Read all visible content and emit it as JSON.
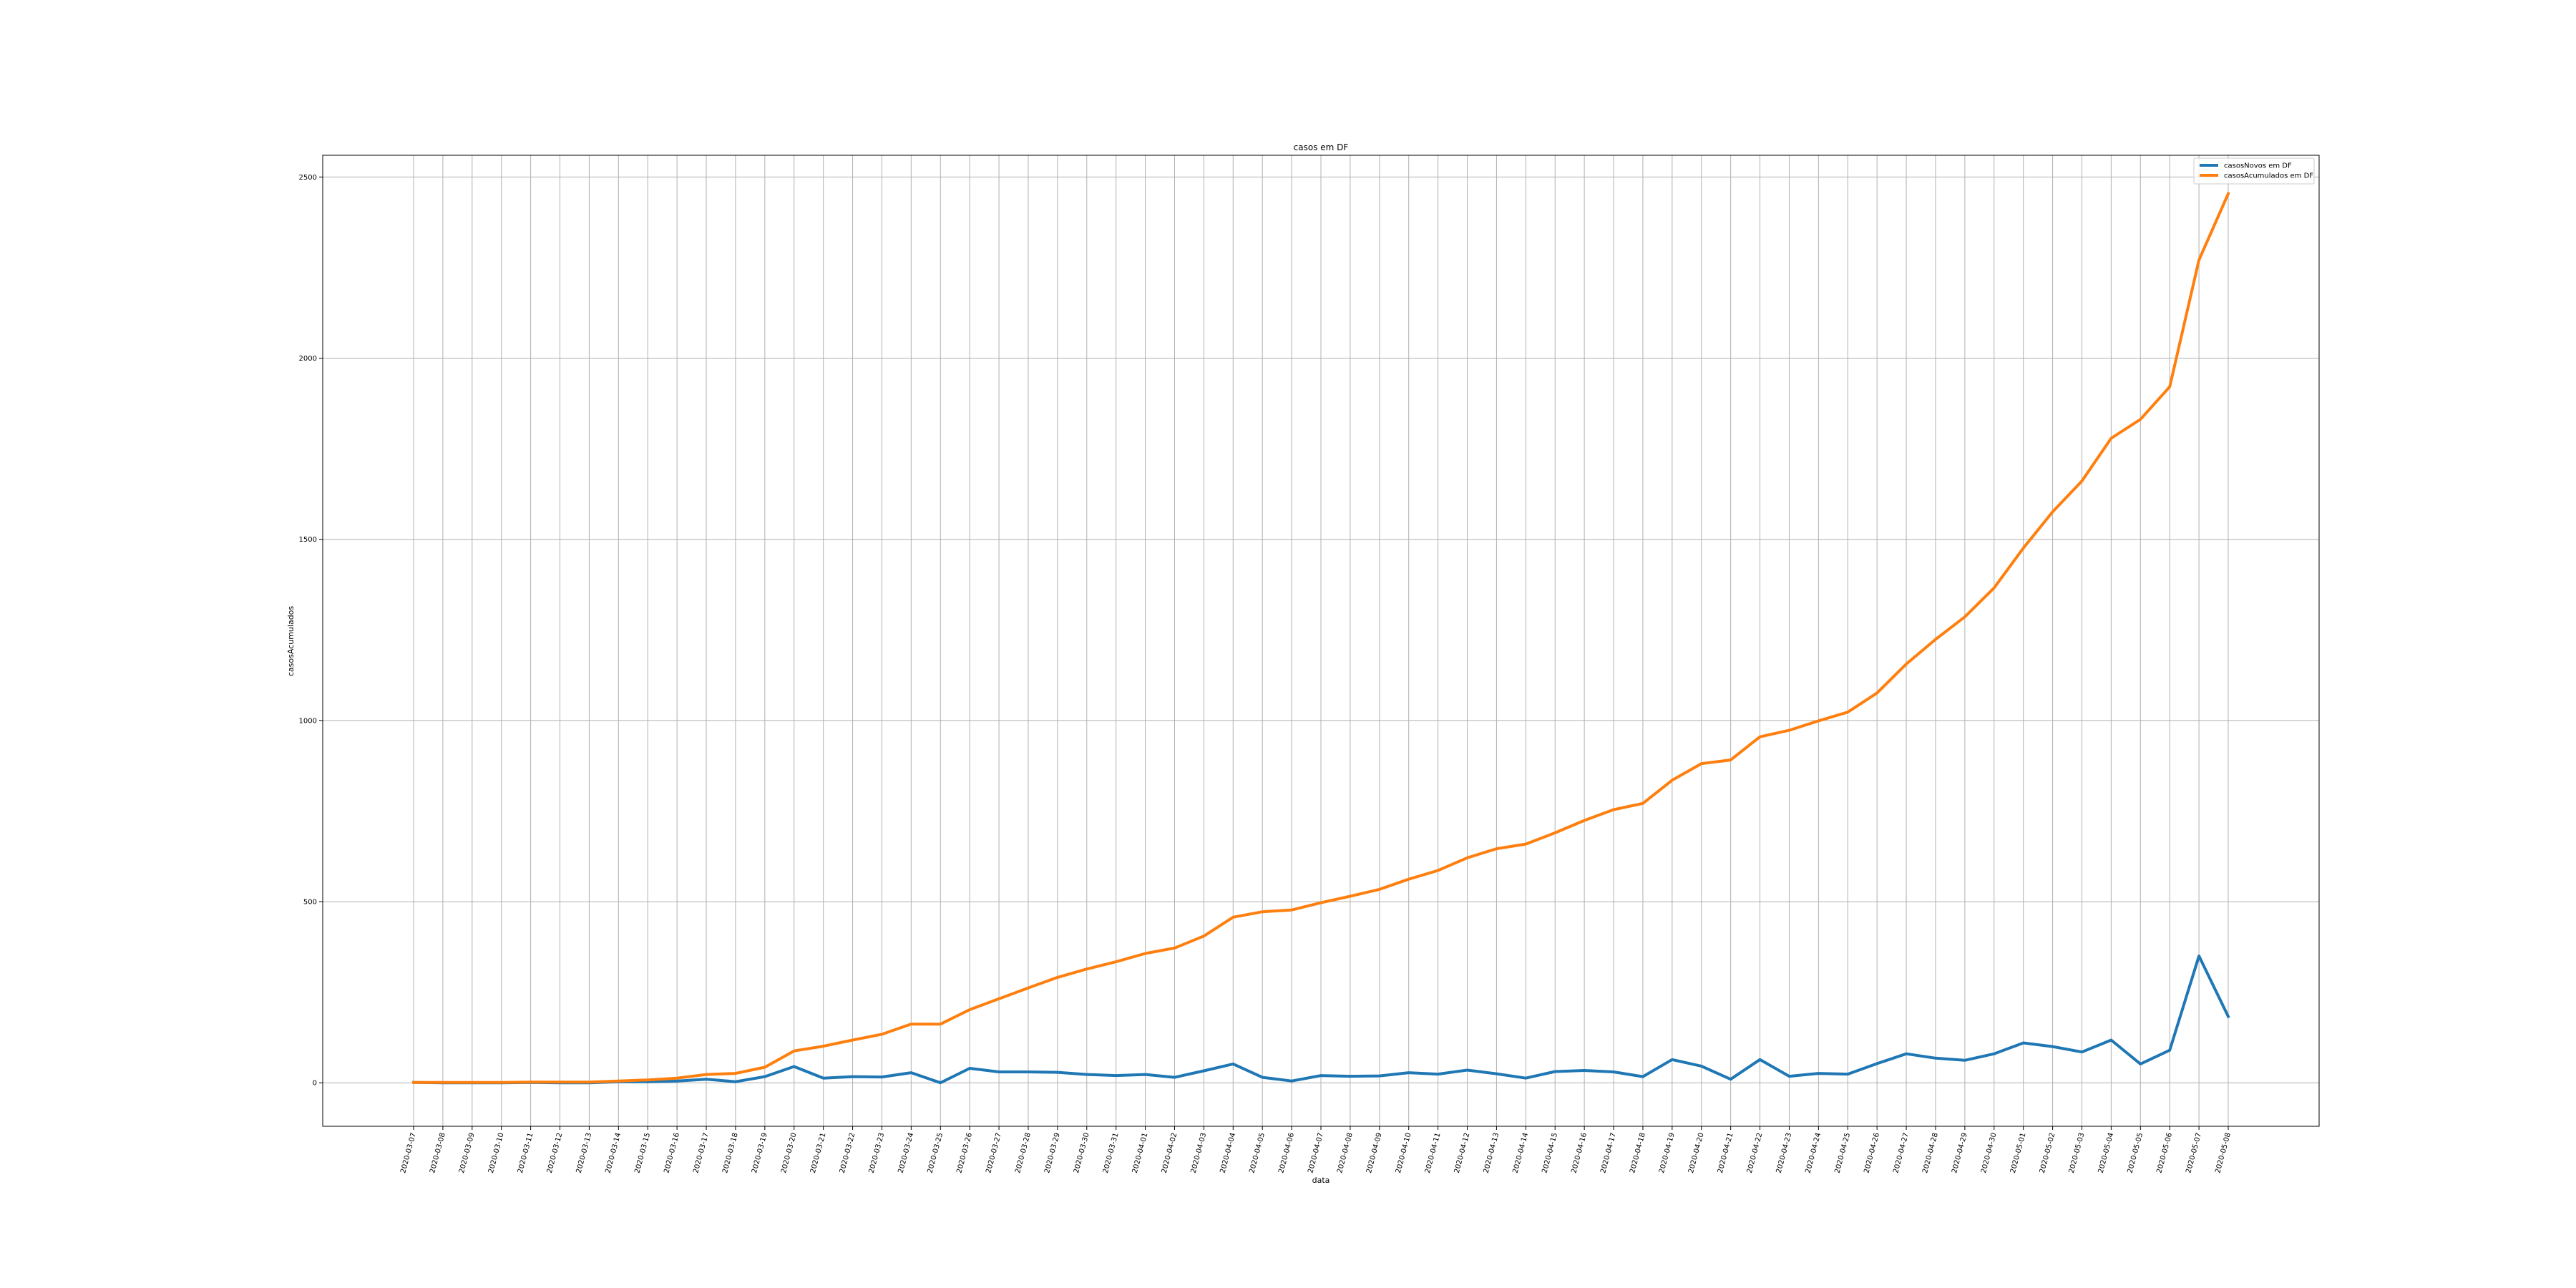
{
  "chart_data": {
    "type": "line",
    "title": "casos em DF",
    "xlabel": "data",
    "ylabel": "casosAcumulados",
    "ylim": [
      -120,
      2560
    ],
    "yticks": [
      0,
      500,
      1000,
      1500,
      2000,
      2500
    ],
    "grid": true,
    "legend_position": "top-right",
    "categories": [
      "2020-03-07",
      "2020-03-08",
      "2020-03-09",
      "2020-03-10",
      "2020-03-11",
      "2020-03-12",
      "2020-03-13",
      "2020-03-14",
      "2020-03-15",
      "2020-03-16",
      "2020-03-17",
      "2020-03-18",
      "2020-03-19",
      "2020-03-20",
      "2020-03-21",
      "2020-03-22",
      "2020-03-23",
      "2020-03-24",
      "2020-03-25",
      "2020-03-26",
      "2020-03-27",
      "2020-03-28",
      "2020-03-29",
      "2020-03-30",
      "2020-03-31",
      "2020-04-01",
      "2020-04-02",
      "2020-04-03",
      "2020-04-04",
      "2020-04-05",
      "2020-04-06",
      "2020-04-07",
      "2020-04-08",
      "2020-04-09",
      "2020-04-10",
      "2020-04-11",
      "2020-04-12",
      "2020-04-13",
      "2020-04-14",
      "2020-04-15",
      "2020-04-16",
      "2020-04-17",
      "2020-04-18",
      "2020-04-19",
      "2020-04-20",
      "2020-04-21",
      "2020-04-22",
      "2020-04-23",
      "2020-04-24",
      "2020-04-25",
      "2020-04-26",
      "2020-04-27",
      "2020-04-28",
      "2020-04-29",
      "2020-04-30",
      "2020-05-01",
      "2020-05-02",
      "2020-05-03",
      "2020-05-04",
      "2020-05-05",
      "2020-05-06",
      "2020-05-07",
      "2020-05-08"
    ],
    "series": [
      {
        "name": "casosNovos em DF",
        "color": "#1f77b4",
        "values": [
          1,
          0,
          0,
          0,
          1,
          0,
          0,
          3,
          3,
          5,
          10,
          3,
          17,
          45,
          13,
          17,
          16,
          28,
          0,
          40,
          30,
          30,
          29,
          23,
          20,
          23,
          15,
          33,
          52,
          15,
          5,
          20,
          18,
          19,
          28,
          24,
          35,
          25,
          13,
          31,
          34,
          30,
          17,
          64,
          46,
          10,
          64,
          18,
          26,
          24,
          53,
          80,
          68,
          62,
          80,
          110,
          100,
          85,
          118,
          52,
          90,
          350,
          183
        ]
      },
      {
        "name": "casosAcumulados em DF",
        "color": "#ff7f0e",
        "values": [
          1,
          1,
          1,
          1,
          2,
          2,
          2,
          5,
          8,
          13,
          23,
          26,
          43,
          88,
          101,
          118,
          134,
          162,
          162,
          202,
          232,
          262,
          291,
          314,
          334,
          357,
          372,
          405,
          457,
          472,
          477,
          497,
          515,
          534,
          562,
          586,
          621,
          646,
          659,
          690,
          724,
          754,
          771,
          835,
          881,
          891,
          955,
          973,
          999,
          1023,
          1076,
          1156,
          1224,
          1286,
          1366,
          1476,
          1576,
          1661,
          1779,
          1831,
          1921,
          2271,
          2454
        ]
      }
    ]
  }
}
